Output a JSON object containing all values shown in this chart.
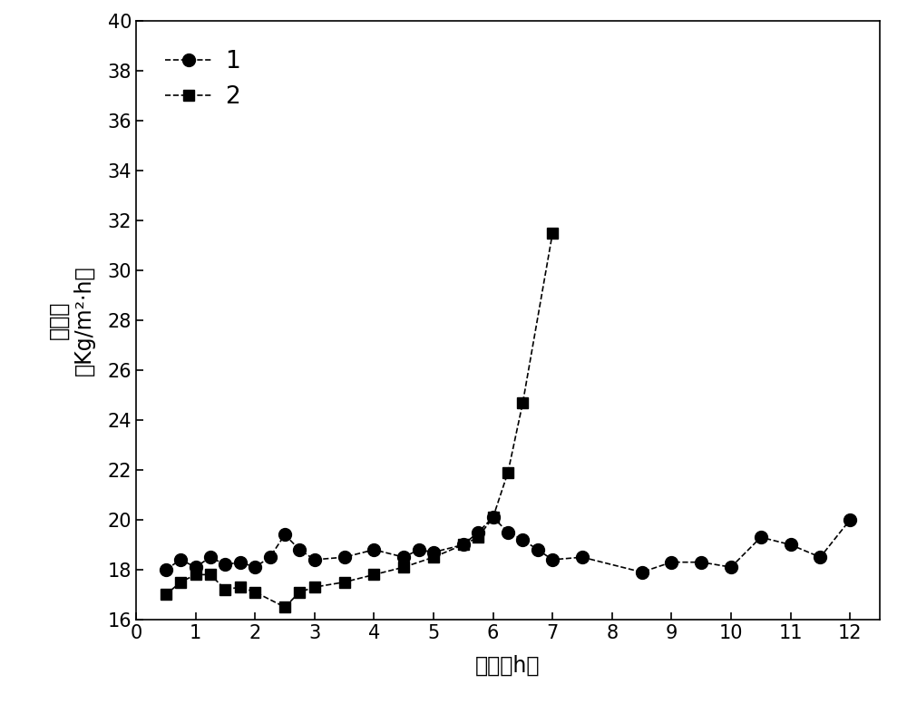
{
  "series1_x": [
    0.5,
    0.75,
    1.0,
    1.25,
    1.5,
    1.75,
    2.0,
    2.25,
    2.5,
    2.75,
    3.0,
    3.5,
    4.0,
    4.5,
    4.75,
    5.0,
    5.5,
    5.75,
    6.0,
    6.25,
    6.5,
    6.75,
    7.0,
    7.5,
    8.5,
    9.0,
    9.5,
    10.0,
    10.5,
    11.0,
    11.5,
    12.0
  ],
  "series1_y": [
    18.0,
    18.4,
    18.1,
    18.5,
    18.2,
    18.3,
    18.1,
    18.5,
    19.4,
    18.8,
    18.4,
    18.5,
    18.8,
    18.5,
    18.8,
    18.7,
    19.0,
    19.5,
    20.1,
    19.5,
    19.2,
    18.8,
    18.4,
    18.5,
    17.9,
    18.3,
    18.3,
    18.1,
    19.3,
    19.0,
    18.5,
    20.0
  ],
  "series2_x": [
    0.5,
    0.75,
    1.0,
    1.25,
    1.5,
    1.75,
    2.0,
    2.5,
    2.75,
    3.0,
    3.5,
    4.0,
    4.5,
    5.0,
    5.5,
    5.75,
    6.0,
    6.25,
    6.5,
    7.0
  ],
  "series2_y": [
    17.0,
    17.5,
    17.8,
    17.8,
    17.2,
    17.3,
    17.1,
    16.5,
    17.1,
    17.3,
    17.5,
    17.8,
    18.1,
    18.5,
    19.0,
    19.3,
    20.1,
    21.9,
    24.7,
    31.5
  ],
  "xlim": [
    0,
    12.5
  ],
  "ylim": [
    16,
    40
  ],
  "xticks": [
    0,
    1,
    2,
    3,
    4,
    5,
    6,
    7,
    8,
    9,
    10,
    11,
    12
  ],
  "yticks": [
    16,
    18,
    20,
    22,
    24,
    26,
    28,
    30,
    32,
    34,
    36,
    38,
    40
  ],
  "xlabel": "时间（h）",
  "ylabel_cn": "膜通量",
  "ylabel_en": "（Kg/m²·h）",
  "legend1": "1",
  "legend2": "2",
  "line_color": "#000000",
  "background_color": "#ffffff",
  "line_style": "--",
  "marker1": "o",
  "marker2": "s",
  "markersize1": 10,
  "markersize2": 9,
  "linewidth": 1.2,
  "label_fontsize": 17,
  "tick_fontsize": 15,
  "legend_fontsize": 19
}
